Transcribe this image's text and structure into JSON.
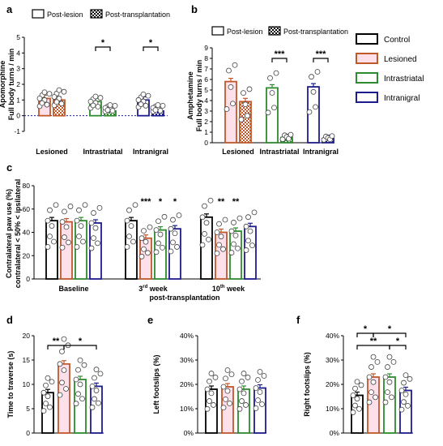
{
  "colors": {
    "control": "#000000",
    "lesioned": "#c0582a",
    "intrastriatal": "#2e8b2e",
    "intranigral": "#1c1c8c",
    "pink": "#fde0ea"
  },
  "legend": [
    {
      "key": "control",
      "label": "Control"
    },
    {
      "key": "lesioned",
      "label": "Lesioned"
    },
    {
      "key": "intrastriatal",
      "label": "Intrastriatal"
    },
    {
      "key": "intranigral",
      "label": "Intranigral"
    }
  ],
  "chart_data": [
    {
      "panel": "a",
      "type": "bar",
      "ylabel": [
        "Apomorphine",
        "Full body turns / min"
      ],
      "ylim": [
        -1,
        5
      ],
      "yticks": [
        -1,
        0,
        1,
        2,
        3,
        4,
        5
      ],
      "categories": [
        "Lesioned",
        "Intrastriatal",
        "Intranigral"
      ],
      "legend": [
        "Post-lesion",
        "Post-transplantation"
      ],
      "series": [
        {
          "name": "Post-lesion",
          "values": [
            1.1,
            0.9,
            1.0
          ]
        },
        {
          "name": "Post-transplantation",
          "values": [
            1.0,
            0.3,
            0.3
          ]
        }
      ],
      "significance": [
        {
          "category": "Intrastriatal",
          "label": "*"
        },
        {
          "category": "Intranigral",
          "label": "*"
        }
      ]
    },
    {
      "panel": "b",
      "type": "bar",
      "ylabel": [
        "Amphetamine",
        "Full body turns / min"
      ],
      "ylim": [
        0,
        9
      ],
      "yticks": [
        0,
        1,
        2,
        3,
        4,
        5,
        6,
        7,
        8,
        9
      ],
      "categories": [
        "Lesioned",
        "Intrastriatal",
        "Intranigral"
      ],
      "legend": [
        "Post-lesion",
        "Post-transplantation"
      ],
      "series": [
        {
          "name": "Post-lesion",
          "values": [
            5.8,
            5.2,
            5.3
          ]
        },
        {
          "name": "Post-transplantation",
          "values": [
            3.9,
            0.5,
            0.4
          ]
        }
      ],
      "significance": [
        {
          "category": "Intrastriatal",
          "label": "***"
        },
        {
          "category": "Intranigral",
          "label": "***"
        }
      ]
    },
    {
      "panel": "c",
      "type": "bar",
      "ylabel": [
        "Contralateral paw use (%)",
        "contralateral < 50% < ipsilateral"
      ],
      "xlabel": "post-transplantation",
      "ylim": [
        0,
        80
      ],
      "yticks": [
        0,
        20,
        40,
        60,
        80
      ],
      "categories": [
        "Baseline",
        "3rd week",
        "10th week"
      ],
      "category_parts": [
        [
          "Baseline",
          ""
        ],
        [
          "3",
          "rd week"
        ],
        [
          "10",
          "th week"
        ]
      ],
      "series": [
        {
          "name": "Control",
          "values": [
            50,
            50,
            53
          ]
        },
        {
          "name": "Lesioned",
          "values": [
            49,
            35,
            40
          ]
        },
        {
          "name": "Intrastriatal",
          "values": [
            50,
            42,
            41
          ]
        },
        {
          "name": "Intranigral",
          "values": [
            48,
            43,
            45
          ]
        }
      ],
      "stars": [
        [
          "",
          "***",
          "*",
          "*"
        ],
        [
          "",
          "**",
          "**",
          ""
        ]
      ]
    },
    {
      "panel": "d",
      "type": "bar",
      "ylabel": [
        "Time to traverse (s)"
      ],
      "ylim": [
        0,
        20
      ],
      "yticks": [
        0,
        5,
        10,
        15,
        20
      ],
      "series": [
        {
          "name": "Control",
          "values": [
            8.3
          ]
        },
        {
          "name": "Lesioned",
          "values": [
            14.2
          ]
        },
        {
          "name": "Intrastriatal",
          "values": [
            11.0
          ]
        },
        {
          "name": "Intranigral",
          "values": [
            9.6
          ]
        }
      ],
      "brackets": [
        {
          "from": 0,
          "to": 1,
          "label": "**"
        },
        {
          "from": 1,
          "to": 3,
          "label": "*"
        }
      ]
    },
    {
      "panel": "e",
      "type": "bar",
      "ylabel": [
        "Left footslips (%)"
      ],
      "ylim": [
        0,
        40
      ],
      "yticks": [
        0,
        10,
        20,
        30,
        40
      ],
      "ytick_labels": [
        "0%",
        "10%",
        "20%",
        "30%",
        "40%"
      ],
      "series": [
        {
          "name": "Control",
          "values": [
            18
          ]
        },
        {
          "name": "Lesioned",
          "values": [
            19
          ]
        },
        {
          "name": "Intrastriatal",
          "values": [
            18
          ]
        },
        {
          "name": "Intranigral",
          "values": [
            18.5
          ]
        }
      ]
    },
    {
      "panel": "f",
      "type": "bar",
      "ylabel": [
        "Right footslips (%)"
      ],
      "ylim": [
        0,
        40
      ],
      "yticks": [
        0,
        10,
        20,
        30,
        40
      ],
      "ytick_labels": [
        "0%",
        "10%",
        "20%",
        "30%",
        "40%"
      ],
      "series": [
        {
          "name": "Control",
          "values": [
            15.5
          ]
        },
        {
          "name": "Lesioned",
          "values": [
            23
          ]
        },
        {
          "name": "Intrastriatal",
          "values": [
            23
          ]
        },
        {
          "name": "Intranigral",
          "values": [
            17.5
          ]
        }
      ],
      "brackets": [
        {
          "from": 0,
          "to": 1,
          "label": "*"
        },
        {
          "from": 1,
          "to": 3,
          "label": "*"
        },
        {
          "from": 0,
          "to": 2,
          "label": "**"
        },
        {
          "from": 2,
          "to": 3,
          "label": "*"
        }
      ]
    }
  ]
}
